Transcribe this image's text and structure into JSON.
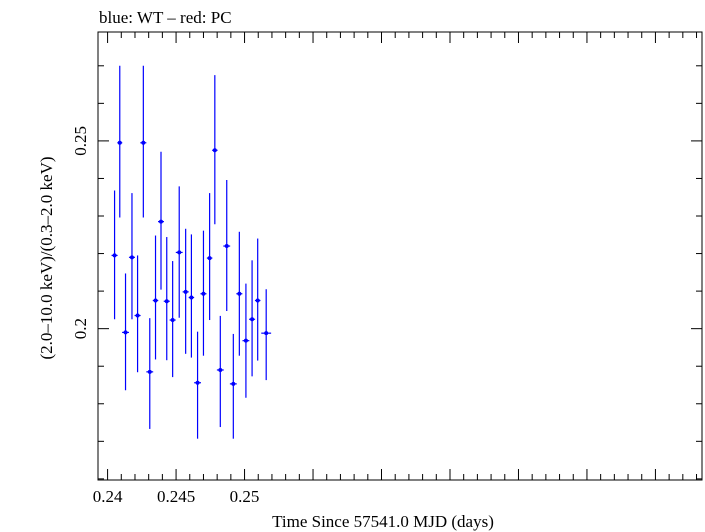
{
  "chart_data": {
    "type": "scatter",
    "title": "blue: WT – red: PC",
    "xlabel": "Time Since 57541.0 MJD (days)",
    "ylabel": "(2.0–10.0 keV)/(0.3–2.0 keV)",
    "xlim": [
      0.2393,
      0.2834
    ],
    "ylim": [
      0.1597,
      0.279
    ],
    "x_ticks": [
      {
        "value": 0.24,
        "label": "0.24"
      },
      {
        "value": 0.245,
        "label": "0.245"
      },
      {
        "value": 0.25,
        "label": "0.25"
      }
    ],
    "y_ticks": [
      {
        "value": 0.2,
        "label": "0.2"
      },
      {
        "value": 0.25,
        "label": "0.25"
      }
    ],
    "grid": false,
    "series": [
      {
        "name": "WT",
        "color": "#0000ff",
        "points": [
          {
            "x": 0.24051,
            "y": 0.2195,
            "xerr": 0.00022,
            "yerr_low": 0.017,
            "yerr_high": 0.0173
          },
          {
            "x": 0.24089,
            "y": 0.2495,
            "xerr": 0.00018,
            "yerr_low": 0.0199,
            "yerr_high": 0.0205
          },
          {
            "x": 0.24131,
            "y": 0.199,
            "xerr": 0.00025,
            "yerr_low": 0.0154,
            "yerr_high": 0.0157
          },
          {
            "x": 0.24178,
            "y": 0.219,
            "xerr": 0.00022,
            "yerr_low": 0.0165,
            "yerr_high": 0.0171
          },
          {
            "x": 0.24219,
            "y": 0.2035,
            "xerr": 0.00022,
            "yerr_low": 0.0151,
            "yerr_high": 0.016
          },
          {
            "x": 0.24261,
            "y": 0.2495,
            "xerr": 0.00022,
            "yerr_low": 0.0199,
            "yerr_high": 0.0205
          },
          {
            "x": 0.24308,
            "y": 0.1885,
            "xerr": 0.00025,
            "yerr_low": 0.0152,
            "yerr_high": 0.0143
          },
          {
            "x": 0.2435,
            "y": 0.2075,
            "xerr": 0.0002,
            "yerr_low": 0.0157,
            "yerr_high": 0.0173
          },
          {
            "x": 0.2439,
            "y": 0.2285,
            "xerr": 0.00022,
            "yerr_low": 0.0181,
            "yerr_high": 0.0186
          },
          {
            "x": 0.24432,
            "y": 0.2073,
            "xerr": 0.00022,
            "yerr_low": 0.0157,
            "yerr_high": 0.0171
          },
          {
            "x": 0.24475,
            "y": 0.2023,
            "xerr": 0.00022,
            "yerr_low": 0.0152,
            "yerr_high": 0.0157
          },
          {
            "x": 0.24523,
            "y": 0.2203,
            "xerr": 0.00025,
            "yerr_low": 0.0174,
            "yerr_high": 0.0176
          },
          {
            "x": 0.2457,
            "y": 0.2098,
            "xerr": 0.00022,
            "yerr_low": 0.0165,
            "yerr_high": 0.0168
          },
          {
            "x": 0.24612,
            "y": 0.2083,
            "xerr": 0.0002,
            "yerr_low": 0.016,
            "yerr_high": 0.0168
          },
          {
            "x": 0.24657,
            "y": 0.1856,
            "xerr": 0.00025,
            "yerr_low": 0.0149,
            "yerr_high": 0.0136
          },
          {
            "x": 0.247,
            "y": 0.2093,
            "xerr": 0.00022,
            "yerr_low": 0.0165,
            "yerr_high": 0.0168
          },
          {
            "x": 0.24745,
            "y": 0.2188,
            "xerr": 0.0002,
            "yerr_low": 0.0165,
            "yerr_high": 0.0173
          },
          {
            "x": 0.24783,
            "y": 0.2475,
            "xerr": 0.0002,
            "yerr_low": 0.0197,
            "yerr_high": 0.02
          },
          {
            "x": 0.24823,
            "y": 0.189,
            "xerr": 0.00025,
            "yerr_low": 0.0152,
            "yerr_high": 0.0144
          },
          {
            "x": 0.2487,
            "y": 0.222,
            "xerr": 0.00025,
            "yerr_low": 0.0173,
            "yerr_high": 0.0176
          },
          {
            "x": 0.24918,
            "y": 0.1853,
            "xerr": 0.00025,
            "yerr_low": 0.0146,
            "yerr_high": 0.0133
          },
          {
            "x": 0.24962,
            "y": 0.2093,
            "xerr": 0.00022,
            "yerr_low": 0.0165,
            "yerr_high": 0.0165
          },
          {
            "x": 0.2501,
            "y": 0.1968,
            "xerr": 0.00025,
            "yerr_low": 0.0152,
            "yerr_high": 0.0152
          },
          {
            "x": 0.25055,
            "y": 0.2025,
            "xerr": 0.00022,
            "yerr_low": 0.0152,
            "yerr_high": 0.0157
          },
          {
            "x": 0.25096,
            "y": 0.2075,
            "xerr": 0.0002,
            "yerr_low": 0.016,
            "yerr_high": 0.0165
          },
          {
            "x": 0.25158,
            "y": 0.1988,
            "xerr": 0.00036,
            "yerr_low": 0.0125,
            "yerr_high": 0.0117
          }
        ]
      }
    ]
  }
}
